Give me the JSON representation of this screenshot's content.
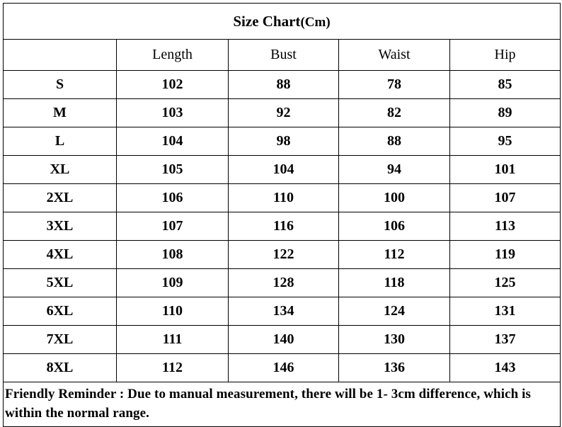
{
  "title": {
    "main": "Size Chart",
    "unit": "(Cm)"
  },
  "columns": [
    "",
    "Length",
    "Bust",
    "Waist",
    "Hip"
  ],
  "rows": [
    {
      "size": "S",
      "length": "102",
      "bust": "88",
      "waist": "78",
      "hip": "85"
    },
    {
      "size": "M",
      "length": "103",
      "bust": "92",
      "waist": "82",
      "hip": "89"
    },
    {
      "size": "L",
      "length": "104",
      "bust": "98",
      "waist": "88",
      "hip": "95"
    },
    {
      "size": "XL",
      "length": "105",
      "bust": "104",
      "waist": "94",
      "hip": "101"
    },
    {
      "size": "2XL",
      "length": "106",
      "bust": "110",
      "waist": "100",
      "hip": "107"
    },
    {
      "size": "3XL",
      "length": "107",
      "bust": "116",
      "waist": "106",
      "hip": "113"
    },
    {
      "size": "4XL",
      "length": "108",
      "bust": "122",
      "waist": "112",
      "hip": "119"
    },
    {
      "size": "5XL",
      "length": "109",
      "bust": "128",
      "waist": "118",
      "hip": "125"
    },
    {
      "size": "6XL",
      "length": "110",
      "bust": "134",
      "waist": "124",
      "hip": "131"
    },
    {
      "size": "7XL",
      "length": "111",
      "bust": "140",
      "waist": "130",
      "hip": "137"
    },
    {
      "size": "8XL",
      "length": "112",
      "bust": "146",
      "waist": "136",
      "hip": "143"
    }
  ],
  "note": "Friendly Reminder : Due to manual measurement, there will be 1- 3cm difference, which is within the normal range."
}
